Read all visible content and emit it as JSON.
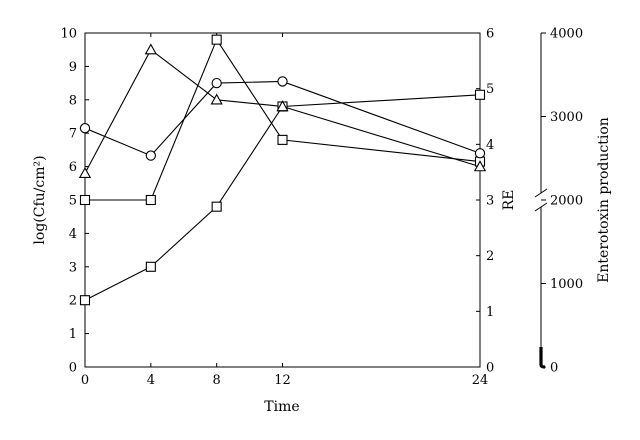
{
  "chart_data": {
    "type": "line",
    "xlabel": "Time",
    "ylabel": "log(Cfu/cm²)",
    "ylabel_right": "RE",
    "ylabel_far_right": "Enterotoxin production",
    "x_ticks": [
      "0",
      "4",
      "8",
      "12",
      "24"
    ],
    "xlim": [
      0,
      24
    ],
    "ylim": [
      0,
      10
    ],
    "y_ticks": [
      "0",
      "1",
      "2",
      "3",
      "4",
      "5",
      "6",
      "7",
      "8",
      "9",
      "10"
    ],
    "ylim_right": [
      0,
      6
    ],
    "y_ticks_right": [
      "0",
      "1",
      "2",
      "3",
      "4",
      "5",
      "6"
    ],
    "ylim_far_right": [
      0,
      4000
    ],
    "y_ticks_far_right": [
      "0",
      "1000",
      "2000",
      "3000",
      "4000"
    ],
    "far_right_axis_break": true,
    "grid": false,
    "series": [
      {
        "marker": "square",
        "x": [
          0,
          4,
          8,
          12,
          24
        ],
        "y": [
          2.0,
          3.0,
          4.8,
          7.8,
          8.15
        ]
      },
      {
        "marker": "square",
        "x": [
          0,
          4,
          8,
          12,
          24
        ],
        "y": [
          5.0,
          5.0,
          9.8,
          6.8,
          6.15
        ]
      },
      {
        "marker": "triangle",
        "x": [
          0,
          8,
          24
        ],
        "y": [
          5.8,
          8.0,
          6.0
        ]
      },
      {
        "marker": "triangle",
        "x": [
          4,
          12
        ],
        "y": [
          9.5,
          7.8
        ]
      },
      {
        "marker": "circle",
        "x": [
          0,
          4,
          8,
          12,
          24
        ],
        "y": [
          7.15,
          6.33,
          8.5,
          8.55,
          6.4
        ]
      }
    ],
    "extra_segments": [
      {
        "x": [
          0,
          4
        ],
        "y": [
          5.8,
          9.5
        ]
      },
      {
        "x": [
          4,
          8
        ],
        "y": [
          9.5,
          8.0
        ]
      },
      {
        "x": [
          8,
          12
        ],
        "y": [
          8.0,
          7.8
        ]
      },
      {
        "x": [
          12,
          24
        ],
        "y": [
          7.8,
          6.0
        ]
      }
    ]
  }
}
